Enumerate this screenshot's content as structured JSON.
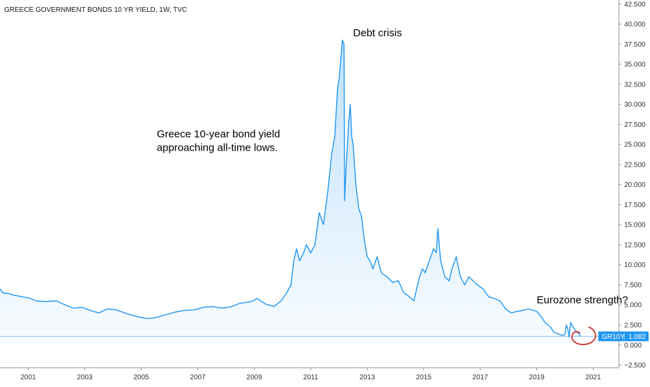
{
  "chart_data": {
    "type": "area",
    "title": "GREECE GOVERNMENT BONDS 10 YR YIELD, 1W, TVC",
    "xlabel": "",
    "ylabel": "",
    "xlim": [
      2000.0,
      2021.9
    ],
    "ylim": [
      -2.8,
      43.0
    ],
    "x_ticks": [
      2001,
      2003,
      2005,
      2007,
      2009,
      2011,
      2013,
      2015,
      2017,
      2019,
      2021
    ],
    "x_tick_labels": [
      "2001",
      "2003",
      "2005",
      "2007",
      "2009",
      "2011",
      "2013",
      "2015",
      "2017",
      "2019",
      "2021"
    ],
    "y_ticks": [
      -2.5,
      0,
      2.5,
      5,
      7.5,
      10,
      12.5,
      15,
      17.5,
      20,
      22.5,
      25,
      27.5,
      30,
      32.5,
      35,
      37.5,
      40,
      42.5
    ],
    "y_tick_labels": [
      "−2.500",
      "0.000",
      "2.500",
      "5.000",
      "7.500",
      "10.000",
      "12.500",
      "15.000",
      "17.500",
      "20.000",
      "22.500",
      "25.000",
      "27.500",
      "30.000",
      "32.500",
      "35.000",
      "37.500",
      "40.000",
      "42.500"
    ],
    "grid": false,
    "line_color": "#2196f3",
    "fill_color": "#2196f3",
    "series": [
      {
        "x": [
          2000.0,
          2000.1,
          2000.3,
          2000.5,
          2000.8,
          2001.0,
          2001.3,
          2001.6,
          2002.0,
          2002.3,
          2002.6,
          2002.9,
          2003.2,
          2003.5,
          2003.8,
          2004.1,
          2004.5,
          2004.9,
          2005.2,
          2005.5,
          2005.8,
          2006.2,
          2006.5,
          2006.9,
          2007.2,
          2007.5,
          2007.9,
          2008.2,
          2008.5,
          2008.9,
          2009.1,
          2009.4,
          2009.7,
          2009.95,
          2010.15,
          2010.3,
          2010.4,
          2010.5,
          2010.6,
          2010.75,
          2010.85,
          2011.0,
          2011.15,
          2011.3,
          2011.45,
          2011.6,
          2011.75,
          2011.85,
          2011.95,
          2012.0,
          2012.05,
          2012.12,
          2012.18,
          2012.2,
          2012.25,
          2012.35,
          2012.4,
          2012.45,
          2012.5,
          2012.6,
          2012.7,
          2012.8,
          2012.9,
          2013.0,
          2013.1,
          2013.2,
          2013.35,
          2013.5,
          2013.7,
          2013.9,
          2014.1,
          2014.3,
          2014.5,
          2014.65,
          2014.75,
          2014.85,
          2014.95,
          2015.05,
          2015.2,
          2015.35,
          2015.45,
          2015.5,
          2015.6,
          2015.75,
          2015.9,
          2016.0,
          2016.15,
          2016.3,
          2016.45,
          2016.6,
          2016.75,
          2016.9,
          2017.1,
          2017.3,
          2017.5,
          2017.7,
          2017.9,
          2018.1,
          2018.3,
          2018.5,
          2018.7,
          2018.9,
          2019.0,
          2019.1,
          2019.3,
          2019.5,
          2019.6,
          2019.75,
          2019.9,
          2020.0,
          2020.05,
          2020.1,
          2020.15,
          2020.2,
          2020.28,
          2020.35,
          2020.42,
          2020.5,
          2020.55
        ],
        "y": [
          7.0,
          6.5,
          6.4,
          6.2,
          6.0,
          5.9,
          5.5,
          5.4,
          5.5,
          5.0,
          4.6,
          4.7,
          4.3,
          4.0,
          4.5,
          4.4,
          3.9,
          3.5,
          3.3,
          3.4,
          3.7,
          4.1,
          4.3,
          4.4,
          4.7,
          4.8,
          4.6,
          4.8,
          5.2,
          5.4,
          5.8,
          5.1,
          4.8,
          5.5,
          6.5,
          7.5,
          10.5,
          12.0,
          10.5,
          11.5,
          12.5,
          11.5,
          12.5,
          16.5,
          15.0,
          19.0,
          24.0,
          26.0,
          32.0,
          33.0,
          35.0,
          38.0,
          37.5,
          18.0,
          22.0,
          28.0,
          30.0,
          26.0,
          25.0,
          20.0,
          17.0,
          16.0,
          13.0,
          11.0,
          10.5,
          9.5,
          11.0,
          9.0,
          8.5,
          7.8,
          8.0,
          6.5,
          6.0,
          5.5,
          7.0,
          8.5,
          9.5,
          9.0,
          10.5,
          12.0,
          11.5,
          14.5,
          10.5,
          8.5,
          8.0,
          9.5,
          11.0,
          8.5,
          7.5,
          8.5,
          8.0,
          7.5,
          7.0,
          6.0,
          5.8,
          5.5,
          4.5,
          4.0,
          4.2,
          4.3,
          4.5,
          4.3,
          4.2,
          3.8,
          2.8,
          2.2,
          1.6,
          1.4,
          1.2,
          1.3,
          2.5,
          2.0,
          1.0,
          2.8,
          2.3,
          1.9,
          1.6,
          1.4,
          1.08
        ]
      }
    ],
    "annotations": [
      {
        "text": "Debt crisis",
        "x": 2012.5,
        "y": 38.5
      },
      {
        "text": "Greece 10-year bond yield",
        "x": 2005.55,
        "y": 25.9
      },
      {
        "text": "approaching all-time lows.",
        "x": 2005.55,
        "y": 24.2
      },
      {
        "text": "Eurozone strength?",
        "x": 2019.0,
        "y": 5.2
      }
    ],
    "reference_line": {
      "y": 1.082,
      "color": "#2196f3"
    },
    "last_value_badge": {
      "symbol": "GR10Y",
      "value": "1.082",
      "y": 1.082
    },
    "highlight_circle": {
      "x": 2020.6,
      "y": 1.0,
      "color": "#d32f2f"
    }
  }
}
